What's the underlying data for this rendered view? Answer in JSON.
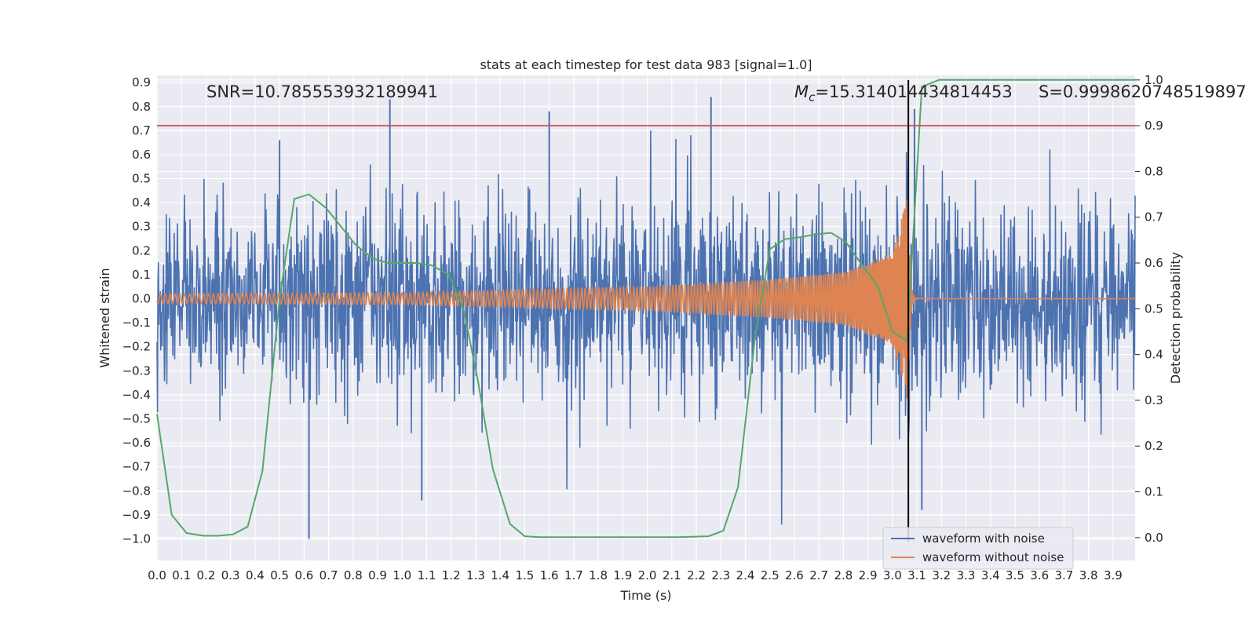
{
  "chart_data": {
    "type": "line",
    "title": "stats at each timestep for test data 983 [signal=1.0]",
    "xlabel": "Time (s)",
    "ylabel": "Whitened strain",
    "y2label": "Detection probability",
    "xlim": [
      0.0,
      3.99
    ],
    "ylim": [
      -1.09,
      0.93
    ],
    "y2lim": [
      -0.05,
      1.01
    ],
    "x_ticks": [
      "0.0",
      "0.1",
      "0.2",
      "0.3",
      "0.4",
      "0.5",
      "0.6",
      "0.7",
      "0.8",
      "0.9",
      "1.0",
      "1.1",
      "1.2",
      "1.3",
      "1.4",
      "1.5",
      "1.6",
      "1.7",
      "1.8",
      "1.9",
      "2.0",
      "2.1",
      "2.2",
      "2.3",
      "2.4",
      "2.5",
      "2.6",
      "2.7",
      "2.8",
      "2.9",
      "3.0",
      "3.1",
      "3.2",
      "3.3",
      "3.4",
      "3.5",
      "3.6",
      "3.7",
      "3.8",
      "3.9"
    ],
    "y_ticks": [
      "0.9",
      "0.8",
      "0.7",
      "0.6",
      "0.5",
      "0.4",
      "0.3",
      "0.2",
      "0.1",
      "0.0",
      "−0.1",
      "−0.2",
      "−0.3",
      "−0.4",
      "−0.5",
      "−0.6",
      "−0.7",
      "−0.8",
      "−0.9",
      "−1.0"
    ],
    "y2_ticks": [
      "0.0",
      "0.1",
      "0.2",
      "0.3",
      "0.4",
      "0.5",
      "0.6",
      "0.7",
      "0.8",
      "0.9",
      "1.0"
    ],
    "grid": true,
    "legend_position": "lower-right",
    "threshold_line": {
      "axis": "right",
      "value": 0.9,
      "color": "#c44e52"
    },
    "merger_time": 3.065,
    "annotations": {
      "snr": "SNR=10.785553932189941",
      "mc_symbol": "M",
      "mc_sub": "c",
      "mc_value": "=15.314014434814453",
      "s": "S=0.9998620748519897"
    },
    "series": [
      {
        "name": "waveform with noise",
        "color": "#4c72b0",
        "style": "noise",
        "noise_amplitude": 0.38,
        "notable_spikes": [
          {
            "x": 0.95,
            "y": 0.83
          },
          {
            "x": 2.26,
            "y": 0.84
          },
          {
            "x": 1.6,
            "y": 0.78
          },
          {
            "x": 0.62,
            "y": -1.0
          },
          {
            "x": 0.5,
            "y": 0.66
          },
          {
            "x": 1.08,
            "y": -0.84
          },
          {
            "x": 3.09,
            "y": 0.79
          },
          {
            "x": 3.12,
            "y": -0.88
          }
        ]
      },
      {
        "name": "waveform without noise",
        "color": "#dd8452",
        "style": "chirp",
        "amplitude_points": [
          [
            0.0,
            0.02
          ],
          [
            1.0,
            0.025
          ],
          [
            2.0,
            0.05
          ],
          [
            2.5,
            0.08
          ],
          [
            2.8,
            0.11
          ],
          [
            3.0,
            0.19
          ],
          [
            3.06,
            0.42
          ],
          [
            3.09,
            0.05
          ],
          [
            3.11,
            0.0
          ]
        ]
      },
      {
        "name": "detection probability",
        "color": "#55a868",
        "axis": "right",
        "x": [
          0.0,
          0.06,
          0.12,
          0.19,
          0.25,
          0.31,
          0.37,
          0.43,
          0.5,
          0.56,
          0.62,
          0.69,
          0.75,
          0.81,
          0.88,
          0.94,
          1.0,
          1.06,
          1.12,
          1.19,
          1.25,
          1.31,
          1.37,
          1.44,
          1.5,
          1.56,
          1.62,
          1.69,
          1.75,
          1.81,
          1.87,
          1.94,
          2.0,
          2.06,
          2.12,
          2.19,
          2.25,
          2.31,
          2.37,
          2.44,
          2.5,
          2.56,
          2.62,
          2.69,
          2.75,
          2.81,
          2.87,
          2.94,
          3.0,
          3.06,
          3.12,
          3.19,
          3.25,
          3.31,
          3.37,
          3.44,
          3.5,
          3.56,
          3.62,
          3.69,
          3.75,
          3.81,
          3.87,
          3.94,
          3.99
        ],
        "y": [
          0.27,
          0.05,
          0.01,
          0.004,
          0.004,
          0.007,
          0.024,
          0.145,
          0.52,
          0.74,
          0.75,
          0.72,
          0.68,
          0.64,
          0.61,
          0.6,
          0.6,
          0.6,
          0.595,
          0.575,
          0.5,
          0.34,
          0.15,
          0.03,
          0.003,
          0.001,
          0.001,
          0.001,
          0.001,
          0.001,
          0.001,
          0.001,
          0.001,
          0.001,
          0.001,
          0.002,
          0.003,
          0.015,
          0.11,
          0.44,
          0.63,
          0.652,
          0.656,
          0.663,
          0.666,
          0.646,
          0.6,
          0.55,
          0.45,
          0.43,
          0.985,
          1.0,
          1.0,
          1.0,
          1.0,
          1.0,
          1.0,
          1.0,
          1.0,
          1.0,
          1.0,
          1.0,
          1.0,
          1.0,
          1.0
        ]
      }
    ]
  }
}
